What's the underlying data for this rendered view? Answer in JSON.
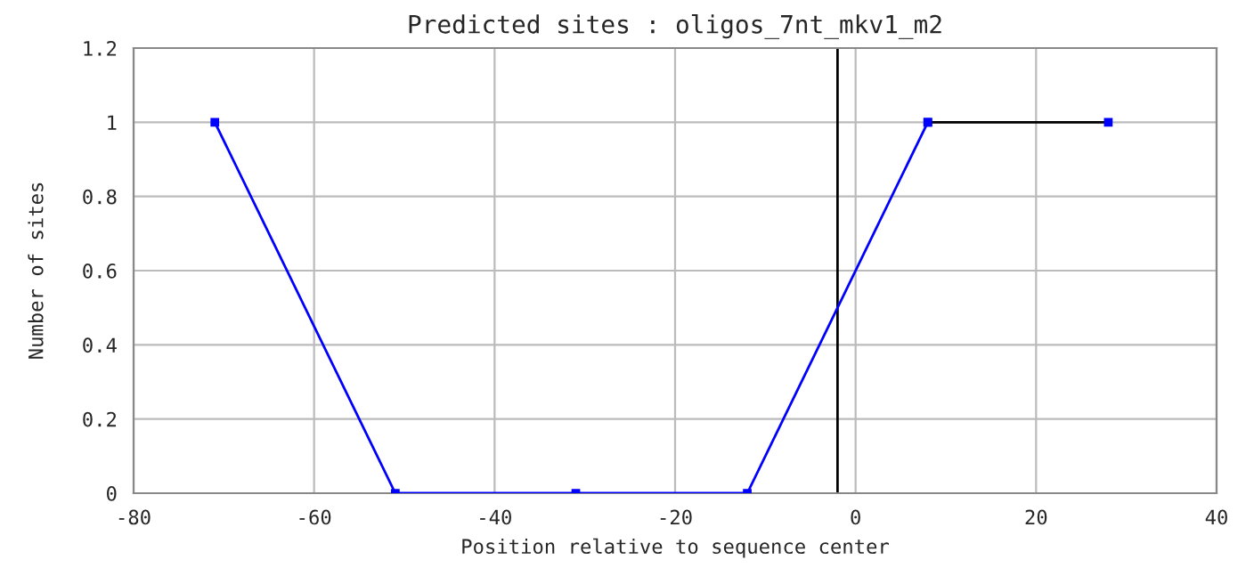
{
  "chart_data": {
    "type": "line",
    "title": "Predicted sites : oligos_7nt_mkv1_m2",
    "xlabel": "Position relative to sequence center",
    "ylabel": "Number of sites",
    "series": [
      {
        "color": "#0000ff",
        "x": [
          -71,
          -51,
          -31,
          -12,
          8
        ],
        "values": [
          1,
          0,
          0,
          0,
          1
        ]
      },
      {
        "color": "#000000",
        "x": [
          8,
          28
        ],
        "values": [
          1,
          1
        ]
      }
    ],
    "xlim": [
      -80,
      40
    ],
    "xticks": [
      -80,
      -60,
      -40,
      -20,
      0,
      20,
      40
    ],
    "ylim": [
      0,
      1.2
    ],
    "yticks": [
      0,
      {
        "value": 0.2,
        "label": "0.2"
      },
      {
        "value": 0.4,
        "label": "0.4"
      },
      {
        "value": 0.6,
        "label": "0.6"
      },
      {
        "value": 0.8,
        "label": "0.8"
      },
      1,
      {
        "value": 1.2,
        "label": "1.2"
      }
    ],
    "ref_lines": [
      {
        "axis": "x",
        "value": -2,
        "color": "#000000"
      }
    ],
    "grid": true,
    "marker": "square",
    "line_style": "solid"
  }
}
